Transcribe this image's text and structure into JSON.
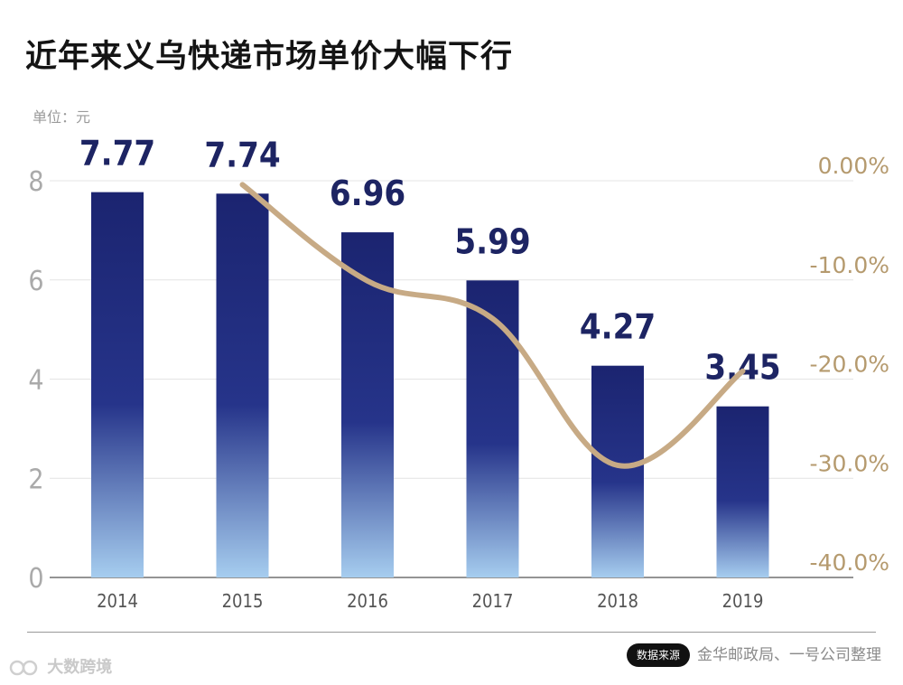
{
  "title": "近年来义乌快递市场单价大幅下行",
  "unit_label": "单位：元",
  "source_badge": "数据来源",
  "source_text": "金华邮政局、一号公司整理",
  "watermark": "大数跨境",
  "colors": {
    "bar_top": "#1b2470",
    "bar_bottom": "#a6cdef",
    "line": "#c7aa85",
    "right_axis_text": "#b59a6e",
    "value_label": "#1d2463",
    "axis_text": "#aaaaaa"
  },
  "chart_data": {
    "type": "bar",
    "categories": [
      "2014",
      "2015",
      "2016",
      "2017",
      "2018",
      "2019"
    ],
    "series": [
      {
        "values": [
          7.77,
          7.74,
          6.96,
          5.99,
          4.27,
          3.45
        ]
      }
    ],
    "data_labels": [
      "7.77",
      "7.74",
      "6.96",
      "5.99",
      "4.27",
      "3.45"
    ],
    "ylim": [
      0,
      8
    ],
    "yticks": [
      "0",
      "2",
      "4",
      "6",
      "8"
    ],
    "secondary": {
      "type": "line",
      "x": [
        "2015",
        "2016",
        "2017",
        "2018",
        "2019"
      ],
      "values": [
        -0.4,
        -10.1,
        -13.9,
        -28.7,
        -19.2
      ],
      "ylim": [
        -40,
        0
      ],
      "yticks": [
        "-40.0%",
        "-30.0%",
        "-20.0%",
        "-10.0%",
        "0.00%"
      ]
    },
    "grid": true
  }
}
